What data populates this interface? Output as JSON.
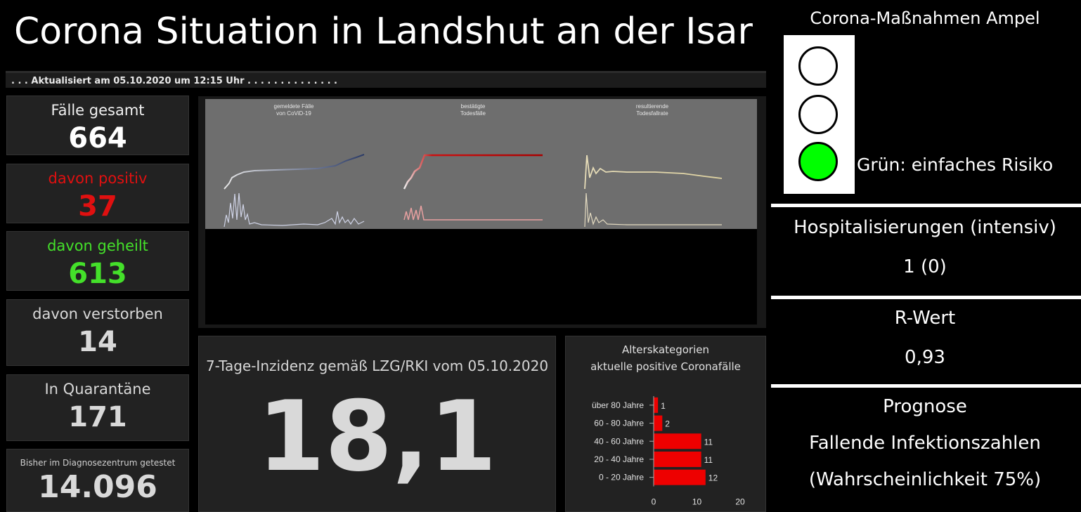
{
  "header": {
    "title": "Corona Situation in Landshut an der Isar",
    "updated": ". . . Aktualisiert am 05.10.2020 um 12:15 Uhr . . . . . . . . . . . . . ."
  },
  "stats": [
    {
      "label": "Fälle gesamt",
      "value": "664",
      "color": "#ffffff"
    },
    {
      "label": "davon positiv",
      "value": "37",
      "color": "#e01010"
    },
    {
      "label": "davon geheilt",
      "value": "613",
      "color": "#44e02a"
    },
    {
      "label": "davon verstorben",
      "value": "14",
      "color": "#d9d9d9"
    },
    {
      "label": "In Quarantäne",
      "value": "171",
      "color": "#d9d9d9"
    },
    {
      "label": "Bisher im Diagnosezentrum getestet",
      "value": "14.096",
      "color": "#d9d9d9"
    }
  ],
  "mini_charts": [
    {
      "title1": "gemeldete Fälle",
      "title2": "von CoViD-19"
    },
    {
      "title1": "bestätigte",
      "title2": "Todesfälle"
    },
    {
      "title1": "resultierende",
      "title2": "Todesfallrate"
    }
  ],
  "incidence": {
    "label": "7-Tage-Inzidenz gemäß LZG/RKI vom 05.10.2020",
    "value": "18,1"
  },
  "age": {
    "title1": "Alterskategorien",
    "title2": "aktuelle positive Coronafälle"
  },
  "ampel": {
    "title": "Corona-Maßnahmen Ampel",
    "status": "Grün: einfaches Risiko",
    "active_color": "#00ff00"
  },
  "hospital": {
    "label": "Hospitalisierungen (intensiv)",
    "value": "1 (0)"
  },
  "rwert": {
    "label": "R-Wert",
    "value": "0,93"
  },
  "prognose": {
    "label": "Prognose",
    "line1": "Fallende Infektionszahlen",
    "line2": "(Wahrscheinlichkeit 75%)"
  },
  "chart_data": {
    "type": "bar",
    "orientation": "horizontal",
    "categories": [
      "über 80 Jahre",
      "60 - 80 Jahre",
      "40 - 60 Jahre",
      "20 - 40 Jahre",
      "0 - 20 Jahre"
    ],
    "values": [
      1,
      2,
      11,
      11,
      12
    ],
    "xlim": [
      0,
      20
    ],
    "xticks": [
      "0",
      "10",
      "20"
    ],
    "bar_color": "#ee0000"
  }
}
